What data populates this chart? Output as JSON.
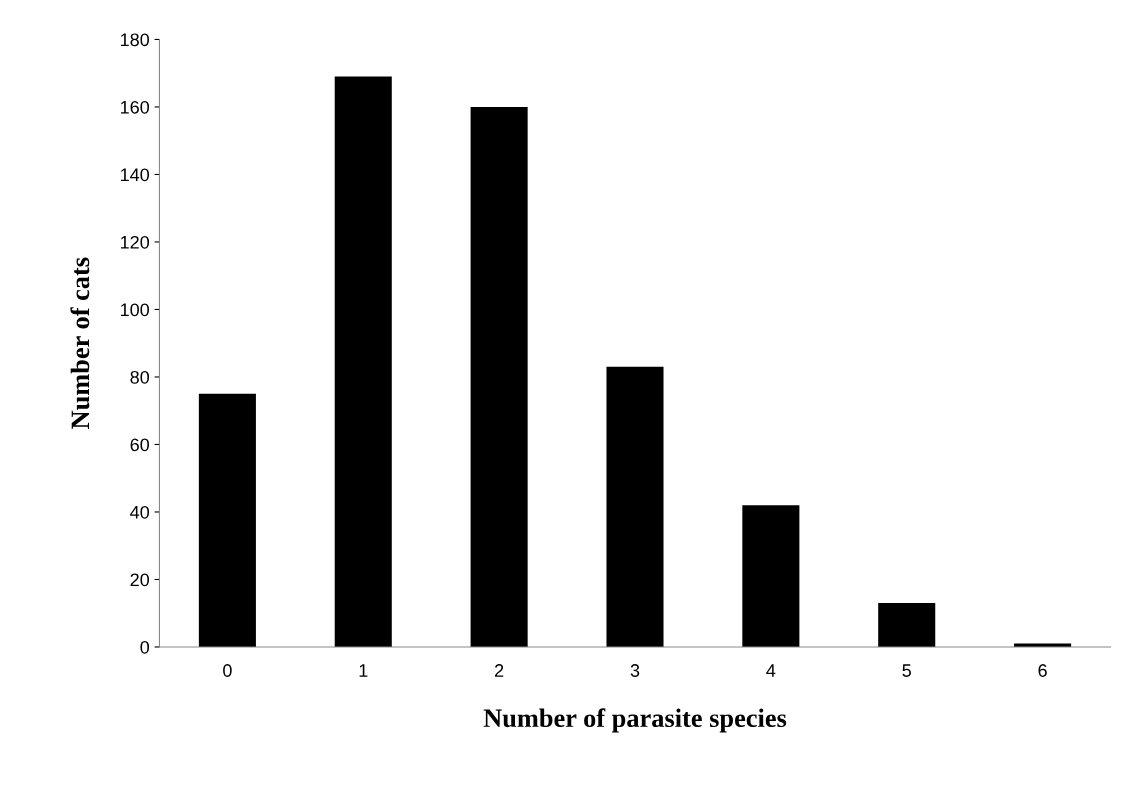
{
  "chart_data": {
    "type": "bar",
    "xlabel": "Number of parasite species",
    "ylabel": "Number of cats",
    "categories": [
      "0",
      "1",
      "2",
      "3",
      "4",
      "5",
      "6"
    ],
    "values": [
      75,
      169,
      160,
      83,
      42,
      13,
      1
    ],
    "color": "#000000",
    "ylim": [
      0,
      180
    ],
    "yticks": [
      0,
      20,
      40,
      60,
      80,
      100,
      120,
      140,
      160,
      180
    ],
    "grid": false,
    "legend": false
  }
}
